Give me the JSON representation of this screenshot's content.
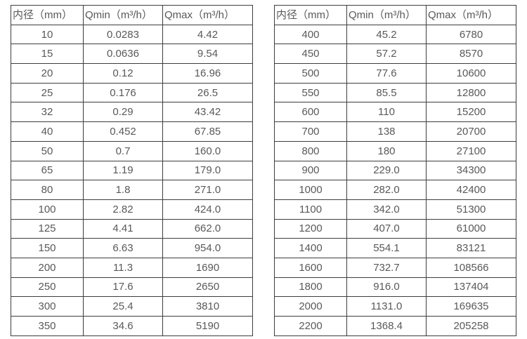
{
  "colors": {
    "background": "#ffffff",
    "border": "#3d3d3d",
    "text": "#595959"
  },
  "headers": {
    "diameter": "内径（mm）",
    "qmin": "Qmin（m³/h）",
    "qmax": "Qmax（m³/h）"
  },
  "tables": [
    {
      "name": "small-diameters",
      "rows": [
        [
          "10",
          "0.0283",
          "4.42"
        ],
        [
          "15",
          "0.0636",
          "9.54"
        ],
        [
          "20",
          "0.12",
          "16.96"
        ],
        [
          "25",
          "0.176",
          "26.5"
        ],
        [
          "32",
          "0.29",
          "43.42"
        ],
        [
          "40",
          "0.452",
          "67.85"
        ],
        [
          "50",
          "0.7",
          "160.0"
        ],
        [
          "65",
          "1.19",
          "179.0"
        ],
        [
          "80",
          "1.8",
          "271.0"
        ],
        [
          "100",
          "2.82",
          "424.0"
        ],
        [
          "125",
          "4.41",
          "662.0"
        ],
        [
          "150",
          "6.63",
          "954.0"
        ],
        [
          "200",
          "11.3",
          "1690"
        ],
        [
          "250",
          "17.6",
          "2650"
        ],
        [
          "300",
          "25.4",
          "3810"
        ],
        [
          "350",
          "34.6",
          "5190"
        ]
      ]
    },
    {
      "name": "large-diameters",
      "rows": [
        [
          "400",
          "45.2",
          "6780"
        ],
        [
          "450",
          "57.2",
          "8570"
        ],
        [
          "500",
          "77.6",
          "10600"
        ],
        [
          "550",
          "85.5",
          "12800"
        ],
        [
          "600",
          "110",
          "15200"
        ],
        [
          "700",
          "138",
          "20700"
        ],
        [
          "800",
          "180",
          "27100"
        ],
        [
          "900",
          "229.0",
          "34300"
        ],
        [
          "1000",
          "282.0",
          "42400"
        ],
        [
          "1100",
          "342.0",
          "51300"
        ],
        [
          "1200",
          "407.0",
          "61000"
        ],
        [
          "1400",
          "554.1",
          "83121"
        ],
        [
          "1600",
          "732.7",
          "108566"
        ],
        [
          "1800",
          "916.0",
          "137404"
        ],
        [
          "2000",
          "1131.0",
          "169635"
        ],
        [
          "2200",
          "1368.4",
          "205258"
        ]
      ]
    }
  ]
}
